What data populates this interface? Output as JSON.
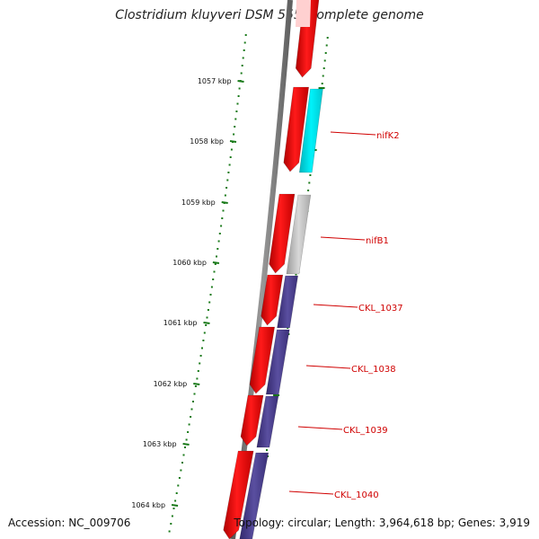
{
  "title": "Clostridium kluyveri DSM 555, complete genome",
  "footer": {
    "accession": "Accession: NC_009706",
    "topology": "Topology: circular; Length: 3,964,618 bp; Genes: 3,919"
  },
  "ticks": [
    "1057 kbp",
    "1058 kbp",
    "1059 kbp",
    "1060 kbp",
    "1061 kbp",
    "1062 kbp",
    "1063 kbp",
    "1064 kbp"
  ],
  "genes": [
    "nifK2",
    "nifB1",
    "CKL_1037",
    "CKL_1038",
    "CKL_1039",
    "CKL_1040"
  ],
  "colors": {
    "backbone": "#777777",
    "forward_strand": "#ff0000",
    "annotated_gene": "#00e5ee",
    "hypothetical_gene": "#c0c0c0",
    "gene_block": "#4a3f8c",
    "label": "#d00000",
    "tick": "#1a7a1a"
  }
}
